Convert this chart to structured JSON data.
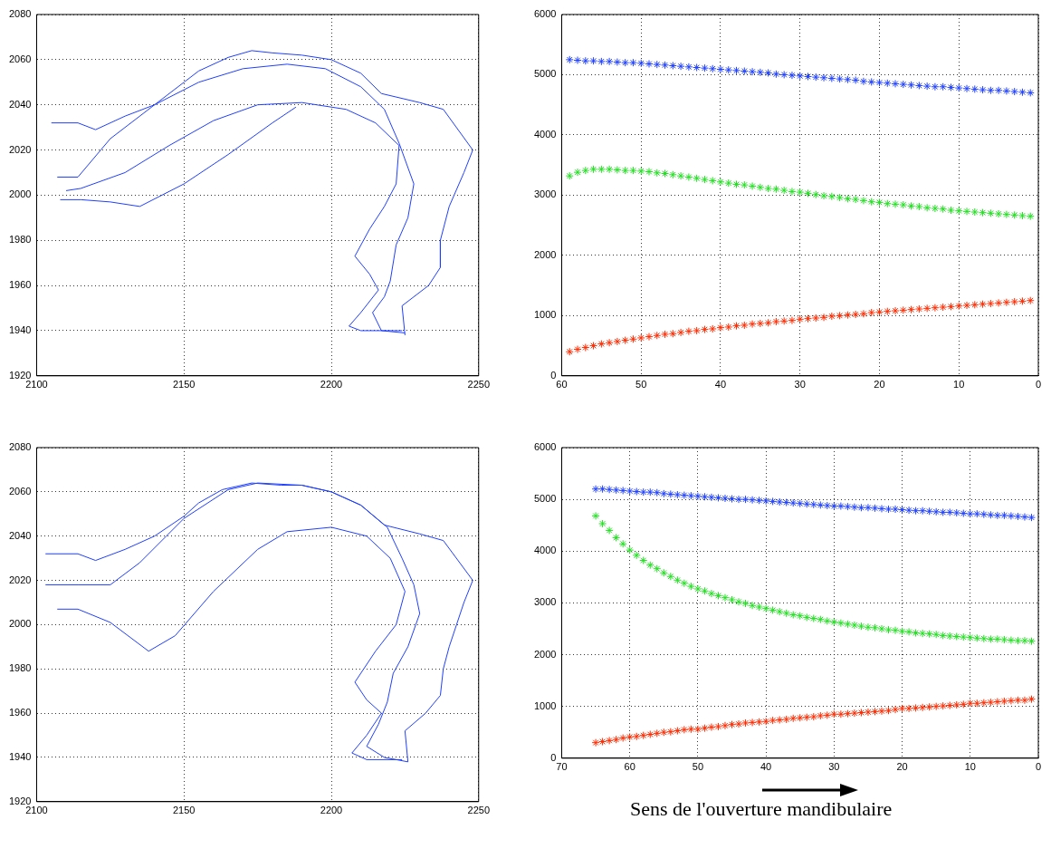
{
  "chart_data": [
    {
      "type": "line",
      "xlim": [
        2100,
        2250
      ],
      "xticks": [
        2100,
        2150,
        2200,
        2250
      ],
      "ylim": [
        1920,
        2080
      ],
      "yticks": [
        1920,
        1940,
        1960,
        1980,
        2000,
        2020,
        2040,
        2060,
        2080
      ],
      "grid": true,
      "marker": "none",
      "line_style": "solid",
      "series": [
        {
          "color": "#1f3fff",
          "x": [
            2105,
            2114,
            2120,
            2130,
            2140,
            2150,
            2155,
            2165,
            2173,
            2180,
            2190,
            2200,
            2210,
            2217,
            2230,
            2238,
            2248,
            2245,
            2240,
            2237,
            2237,
            2233,
            2224,
            2225
          ],
          "values": [
            2032,
            2032,
            2029,
            2035,
            2040,
            2050,
            2055,
            2061,
            2064,
            2063,
            2062,
            2060,
            2054,
            2045,
            2041,
            2038,
            2020,
            2010,
            1995,
            1980,
            1968,
            1960,
            1951,
            1938
          ]
        },
        {
          "color": "#1f3fff",
          "x": [
            2107,
            2114,
            2125,
            2140,
            2155,
            2170,
            2185,
            2198,
            2210,
            2218,
            2223,
            2228,
            2226,
            2222,
            2220,
            2218,
            2214,
            2217,
            2225
          ],
          "values": [
            2008,
            2008,
            2025,
            2040,
            2050,
            2056,
            2058,
            2056,
            2048,
            2038,
            2023,
            2005,
            1990,
            1978,
            1962,
            1955,
            1948,
            1940,
            1939
          ]
        },
        {
          "color": "#1f3fff",
          "x": [
            2110,
            2115,
            2130,
            2145,
            2160,
            2175,
            2190,
            2205,
            2215,
            2223,
            2222,
            2218,
            2213,
            2208,
            2213,
            2216,
            2210,
            2206,
            2210,
            2224
          ],
          "values": [
            2002,
            2003,
            2010,
            2022,
            2033,
            2040,
            2041,
            2038,
            2032,
            2022,
            2005,
            1995,
            1985,
            1973,
            1965,
            1958,
            1948,
            1942,
            1940,
            1940
          ]
        },
        {
          "color": "#1f3fff",
          "x": [
            2108,
            2115,
            2125,
            2135,
            2150,
            2165,
            2180,
            2188
          ],
          "values": [
            1998,
            1998,
            1997,
            1995,
            2005,
            2018,
            2032,
            2039
          ]
        }
      ]
    },
    {
      "type": "scatter",
      "xlim": [
        60,
        0
      ],
      "xticks": [
        60,
        50,
        40,
        30,
        20,
        10,
        0
      ],
      "ylim": [
        0,
        6000
      ],
      "yticks": [
        0,
        1000,
        2000,
        3000,
        4000,
        5000,
        6000
      ],
      "grid": true,
      "marker": "cross",
      "x": [
        59,
        58,
        57,
        56,
        55,
        54,
        53,
        52,
        51,
        50,
        49,
        48,
        47,
        46,
        45,
        44,
        43,
        42,
        41,
        40,
        39,
        38,
        37,
        36,
        35,
        34,
        33,
        32,
        31,
        30,
        29,
        28,
        27,
        26,
        25,
        24,
        23,
        22,
        21,
        20,
        19,
        18,
        17,
        16,
        15,
        14,
        13,
        12,
        11,
        10,
        9,
        8,
        7,
        6,
        5,
        4,
        3,
        2,
        1
      ],
      "series": [
        {
          "color": "#2040ff",
          "values": [
            5250,
            5240,
            5230,
            5230,
            5220,
            5220,
            5210,
            5200,
            5200,
            5190,
            5180,
            5170,
            5160,
            5150,
            5140,
            5130,
            5120,
            5110,
            5100,
            5090,
            5080,
            5070,
            5060,
            5050,
            5040,
            5030,
            5010,
            5000,
            4990,
            4980,
            4970,
            4960,
            4950,
            4940,
            4930,
            4920,
            4910,
            4890,
            4880,
            4870,
            4860,
            4850,
            4840,
            4830,
            4820,
            4810,
            4800,
            4800,
            4790,
            4780,
            4770,
            4760,
            4750,
            4740,
            4740,
            4730,
            4720,
            4710,
            4700
          ]
        },
        {
          "color": "#20e020",
          "values": [
            3320,
            3380,
            3410,
            3430,
            3430,
            3430,
            3420,
            3410,
            3410,
            3400,
            3390,
            3370,
            3360,
            3340,
            3320,
            3300,
            3280,
            3260,
            3240,
            3220,
            3200,
            3180,
            3170,
            3150,
            3130,
            3110,
            3100,
            3080,
            3060,
            3050,
            3030,
            3010,
            2990,
            2980,
            2960,
            2940,
            2930,
            2910,
            2890,
            2880,
            2860,
            2850,
            2840,
            2820,
            2810,
            2790,
            2780,
            2770,
            2750,
            2740,
            2730,
            2720,
            2710,
            2700,
            2690,
            2680,
            2670,
            2660,
            2650
          ]
        },
        {
          "color": "#ff2a00",
          "values": [
            400,
            440,
            470,
            500,
            530,
            550,
            570,
            590,
            610,
            630,
            650,
            670,
            690,
            700,
            720,
            740,
            750,
            770,
            780,
            800,
            810,
            830,
            840,
            860,
            870,
            880,
            900,
            910,
            920,
            940,
            950,
            960,
            970,
            990,
            1000,
            1010,
            1020,
            1030,
            1050,
            1060,
            1070,
            1080,
            1090,
            1100,
            1110,
            1120,
            1130,
            1140,
            1150,
            1160,
            1170,
            1180,
            1190,
            1200,
            1210,
            1220,
            1230,
            1240,
            1250
          ]
        }
      ]
    },
    {
      "type": "line",
      "xlim": [
        2100,
        2250
      ],
      "xticks": [
        2100,
        2150,
        2200,
        2250
      ],
      "ylim": [
        1920,
        2080
      ],
      "yticks": [
        1920,
        1940,
        1960,
        1980,
        2000,
        2020,
        2040,
        2060,
        2080
      ],
      "grid": true,
      "marker": "none",
      "line_style": "solid",
      "series": [
        {
          "color": "#1f3fff",
          "x": [
            2103,
            2114,
            2120,
            2130,
            2140,
            2150,
            2155,
            2163,
            2173,
            2183,
            2190,
            2200,
            2210,
            2218,
            2230,
            2238,
            2248,
            2245,
            2240,
            2238,
            2237,
            2232,
            2225,
            2226
          ],
          "values": [
            2032,
            2032,
            2029,
            2034,
            2040,
            2049,
            2055,
            2061,
            2064,
            2063,
            2063,
            2060,
            2054,
            2045,
            2041,
            2038,
            2020,
            2010,
            1990,
            1980,
            1968,
            1960,
            1952,
            1938
          ]
        },
        {
          "color": "#1f3fff",
          "x": [
            2103,
            2114,
            2125,
            2135,
            2150,
            2165,
            2175,
            2190,
            2200,
            2210,
            2219,
            2224,
            2228,
            2230,
            2226,
            2221,
            2219,
            2216,
            2212,
            2218,
            2226
          ],
          "values": [
            2018,
            2018,
            2018,
            2028,
            2048,
            2061,
            2064,
            2063,
            2060,
            2054,
            2044,
            2030,
            2018,
            2005,
            1990,
            1978,
            1965,
            1955,
            1945,
            1940,
            1938
          ]
        },
        {
          "color": "#1f3fff",
          "x": [
            2107,
            2114,
            2125,
            2138,
            2147,
            2160,
            2175,
            2185,
            2200,
            2212,
            2220,
            2225,
            2222,
            2215,
            2208,
            2212,
            2217,
            2212,
            2207,
            2212,
            2224
          ],
          "values": [
            2007,
            2007,
            2001,
            1988,
            1995,
            2015,
            2034,
            2042,
            2044,
            2040,
            2030,
            2015,
            2000,
            1988,
            1974,
            1966,
            1960,
            1950,
            1942,
            1939,
            1939
          ]
        }
      ]
    },
    {
      "type": "scatter",
      "xlim": [
        70,
        0
      ],
      "xticks": [
        70,
        60,
        50,
        40,
        30,
        20,
        10,
        0
      ],
      "ylim": [
        0,
        6000
      ],
      "yticks": [
        0,
        1000,
        2000,
        3000,
        4000,
        5000,
        6000
      ],
      "grid": true,
      "marker": "cross",
      "annotations": [
        "Sens de l'ouverture mandibulaire"
      ],
      "x": [
        65,
        64,
        63,
        62,
        61,
        60,
        59,
        58,
        57,
        56,
        55,
        54,
        53,
        52,
        51,
        50,
        49,
        48,
        47,
        46,
        45,
        44,
        43,
        42,
        41,
        40,
        39,
        38,
        37,
        36,
        35,
        34,
        33,
        32,
        31,
        30,
        29,
        28,
        27,
        26,
        25,
        24,
        23,
        22,
        21,
        20,
        19,
        18,
        17,
        16,
        15,
        14,
        13,
        12,
        11,
        10,
        9,
        8,
        7,
        6,
        5,
        4,
        3,
        2,
        1
      ],
      "series": [
        {
          "color": "#2040ff",
          "values": [
            5200,
            5200,
            5190,
            5180,
            5170,
            5160,
            5150,
            5140,
            5140,
            5130,
            5110,
            5100,
            5090,
            5080,
            5070,
            5060,
            5050,
            5040,
            5030,
            5020,
            5010,
            5000,
            5000,
            4990,
            4980,
            4970,
            4960,
            4950,
            4940,
            4930,
            4920,
            4910,
            4900,
            4890,
            4880,
            4870,
            4870,
            4860,
            4850,
            4840,
            4840,
            4830,
            4820,
            4810,
            4810,
            4800,
            4790,
            4780,
            4780,
            4770,
            4760,
            4750,
            4750,
            4740,
            4730,
            4720,
            4720,
            4710,
            4700,
            4690,
            4690,
            4680,
            4670,
            4660,
            4650
          ]
        },
        {
          "color": "#20e020",
          "values": [
            4680,
            4530,
            4400,
            4260,
            4140,
            4020,
            3920,
            3820,
            3730,
            3660,
            3580,
            3510,
            3440,
            3380,
            3320,
            3270,
            3230,
            3180,
            3140,
            3100,
            3060,
            3020,
            2990,
            2950,
            2920,
            2890,
            2860,
            2830,
            2800,
            2770,
            2750,
            2720,
            2700,
            2680,
            2650,
            2630,
            2610,
            2590,
            2570,
            2550,
            2530,
            2520,
            2500,
            2480,
            2470,
            2450,
            2440,
            2420,
            2410,
            2400,
            2390,
            2370,
            2360,
            2350,
            2340,
            2330,
            2320,
            2310,
            2300,
            2300,
            2290,
            2280,
            2270,
            2270,
            2260
          ]
        },
        {
          "color": "#ff2a00",
          "values": [
            300,
            320,
            340,
            360,
            390,
            410,
            420,
            440,
            460,
            480,
            500,
            510,
            530,
            550,
            560,
            560,
            580,
            600,
            610,
            630,
            650,
            660,
            680,
            690,
            700,
            710,
            730,
            740,
            750,
            770,
            780,
            790,
            800,
            820,
            830,
            850,
            850,
            860,
            870,
            880,
            890,
            900,
            910,
            920,
            940,
            960,
            960,
            970,
            980,
            990,
            1000,
            1010,
            1020,
            1030,
            1040,
            1060,
            1060,
            1070,
            1080,
            1090,
            1100,
            1110,
            1120,
            1120,
            1140
          ]
        }
      ]
    }
  ]
}
